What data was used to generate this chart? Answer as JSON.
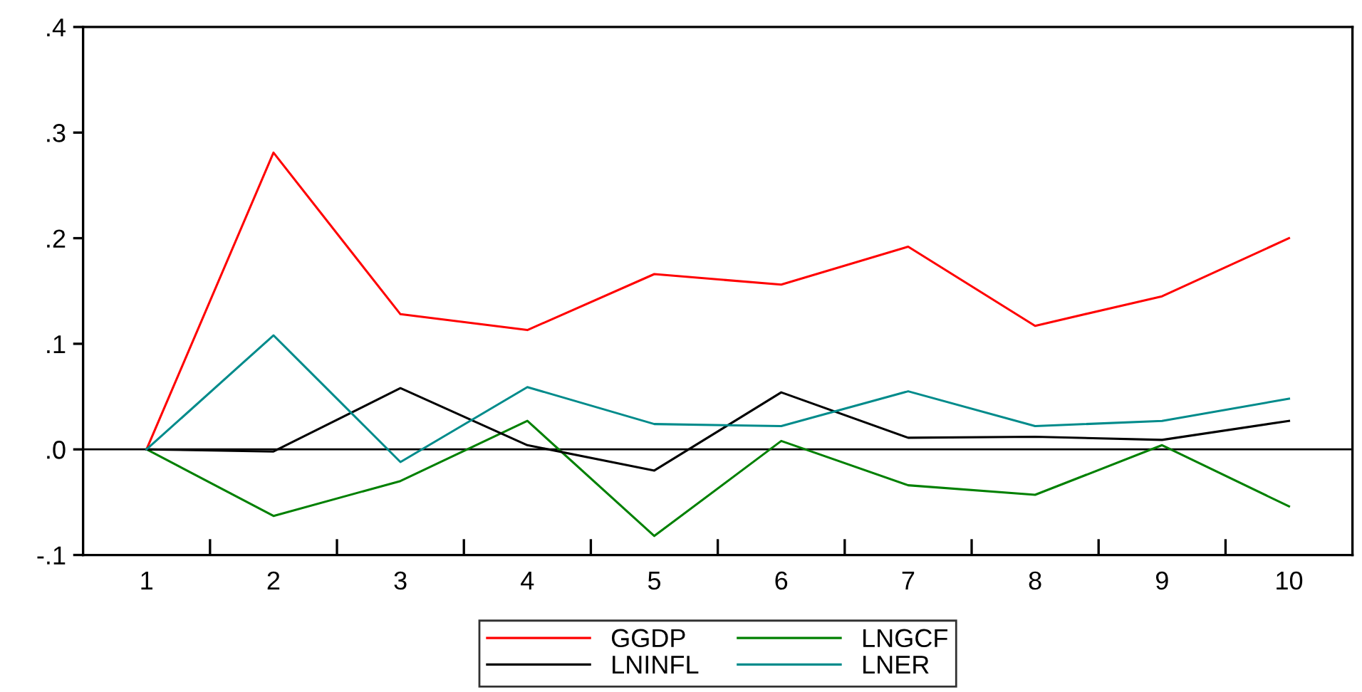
{
  "chart_data": {
    "type": "line",
    "categories": [
      "1",
      "2",
      "3",
      "4",
      "5",
      "6",
      "7",
      "8",
      "9",
      "10"
    ],
    "ylim": [
      -0.1,
      0.4
    ],
    "yticks": [
      {
        "value": -0.1,
        "label": "-.1"
      },
      {
        "value": 0.0,
        "label": ".0"
      },
      {
        "value": 0.1,
        "label": ".1"
      },
      {
        "value": 0.2,
        "label": ".2"
      },
      {
        "value": 0.3,
        "label": ".3"
      },
      {
        "value": 0.4,
        "label": ".4"
      }
    ],
    "series": [
      {
        "name": "GGDP",
        "color": "#ff0000",
        "values": [
          0,
          0.281,
          0.128,
          0.113,
          0.166,
          0.156,
          0.192,
          0.117,
          0.145,
          0.2
        ]
      },
      {
        "name": "LNGCF",
        "color": "#008000",
        "values": [
          0,
          -0.063,
          -0.03,
          0.027,
          -0.082,
          0.008,
          -0.034,
          -0.043,
          0.004,
          -0.054
        ]
      },
      {
        "name": "LNINFL",
        "color": "#000000",
        "values": [
          0,
          -0.002,
          0.058,
          0.004,
          -0.02,
          0.054,
          0.011,
          0.012,
          0.009,
          0.027
        ]
      },
      {
        "name": "LNER",
        "color": "#008b8b",
        "values": [
          0,
          0.108,
          -0.012,
          0.059,
          0.024,
          0.022,
          0.055,
          0.022,
          0.027,
          0.048
        ]
      }
    ],
    "ref_lines": [
      {
        "axis": "y",
        "value": 0,
        "color": "#000000"
      }
    ],
    "grid": false,
    "legend": "bottom",
    "line_style": "solid",
    "marker": "none"
  }
}
